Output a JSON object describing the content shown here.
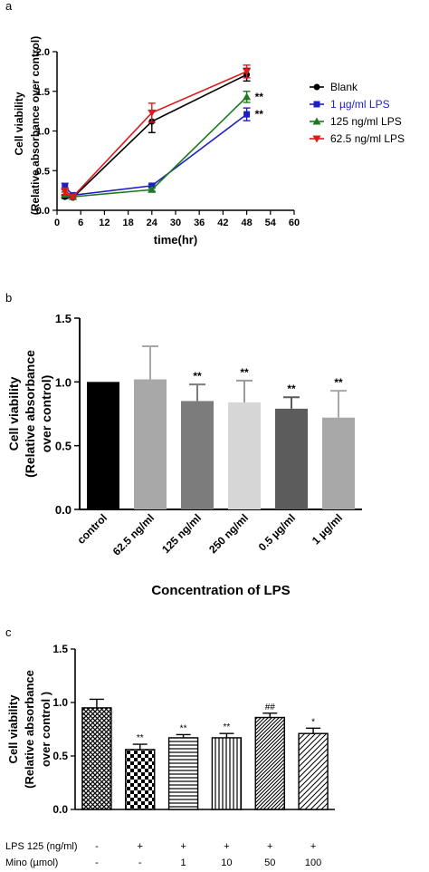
{
  "chart_data": [
    {
      "panel": "a",
      "type": "line",
      "xlabel": "time(hr)",
      "ylabel": [
        "Cell viability",
        "(Relative absorbance over control)"
      ],
      "xlim": [
        0,
        60
      ],
      "ylim": [
        0,
        2.0
      ],
      "xticks": [
        "0",
        "6",
        "12",
        "18",
        "24",
        "30",
        "36",
        "42",
        "48",
        "54",
        "60"
      ],
      "yticks": [
        "0.0",
        "0.5",
        "1.0",
        "1.5",
        "2.0"
      ],
      "legend_position": "right",
      "series": [
        {
          "name": "Blank",
          "color": "#000000",
          "marker": "circle",
          "x": [
            2,
            4,
            24,
            48
          ],
          "y": [
            0.17,
            0.16,
            1.12,
            1.71
          ],
          "err": [
            0.02,
            0.02,
            0.14,
            0.08
          ]
        },
        {
          "name": "1 µg/ml LPS",
          "color": "#1f1fc0",
          "marker": "square",
          "x": [
            2,
            4,
            24,
            48
          ],
          "y": [
            0.3,
            0.19,
            0.31,
            1.21
          ],
          "err": [
            0.04,
            0.02,
            0.02,
            0.08
          ]
        },
        {
          "name": "125 ng/ml LPS",
          "color": "#1e7a1e",
          "marker": "triangle-up",
          "x": [
            2,
            4,
            24,
            48
          ],
          "y": [
            0.2,
            0.17,
            0.26,
            1.43
          ],
          "err": [
            0.03,
            0.02,
            0.02,
            0.07
          ]
        },
        {
          "name": "62.5 ng/ml LPS",
          "color": "#e01a1a",
          "marker": "triangle-down",
          "x": [
            2,
            4,
            24,
            48
          ],
          "y": [
            0.24,
            0.17,
            1.23,
            1.75
          ],
          "err": [
            0.04,
            0.02,
            0.12,
            0.08
          ]
        }
      ],
      "annotations": [
        {
          "text": "**",
          "series": "125 ng/ml LPS",
          "x": 48,
          "y": 1.43
        },
        {
          "text": "**",
          "series": "1 µg/ml LPS",
          "x": 48,
          "y": 1.21
        }
      ]
    },
    {
      "panel": "b",
      "type": "bar",
      "xlabel": "Concentration of LPS",
      "ylabel": [
        "Cell viability",
        "(Relative absorbance",
        "over control)"
      ],
      "ylim": [
        0,
        1.5
      ],
      "yticks": [
        "0.0",
        "0.5",
        "1.0",
        "1.5"
      ],
      "categories": [
        "control",
        "62.5 ng/ml",
        "125 ng/ml",
        "250 ng/ml",
        "0.5 µg/ml",
        "1 µg/ml"
      ],
      "values": [
        1.0,
        1.02,
        0.85,
        0.84,
        0.79,
        0.72
      ],
      "errors": [
        0.0,
        0.26,
        0.13,
        0.17,
        0.09,
        0.21
      ],
      "colors": [
        "#000000",
        "#a8a8a8",
        "#7c7c7c",
        "#d6d6d6",
        "#5c5c5c",
        "#a8a8a8"
      ],
      "labels": [
        "",
        "",
        "**",
        "**",
        "**",
        "**"
      ]
    },
    {
      "panel": "c",
      "type": "bar",
      "ylabel": [
        "Cell viability",
        "(Relative absorbance",
        "over control )"
      ],
      "ylim": [
        0,
        1.5
      ],
      "yticks": [
        "0.0",
        "0.5",
        "1.0",
        "1.5"
      ],
      "values": [
        0.95,
        0.56,
        0.67,
        0.67,
        0.86,
        0.71
      ],
      "errors": [
        0.08,
        0.05,
        0.03,
        0.04,
        0.04,
        0.05
      ],
      "patterns": [
        "crosshatch",
        "checker",
        "horizontal",
        "vertical",
        "diagonal-dense",
        "diagonal"
      ],
      "labels": [
        "",
        "**",
        "**",
        "**",
        "##",
        "*"
      ],
      "rows": [
        {
          "label": "LPS 125 (ng/ml)",
          "values": [
            "-",
            "+",
            "+",
            "+",
            "+",
            "+"
          ]
        },
        {
          "label": "Mino    (µmol)",
          "values": [
            "-",
            "-",
            "1",
            "10",
            "50",
            "100"
          ]
        }
      ]
    }
  ],
  "panel_labels": [
    "a",
    "b",
    "c"
  ]
}
